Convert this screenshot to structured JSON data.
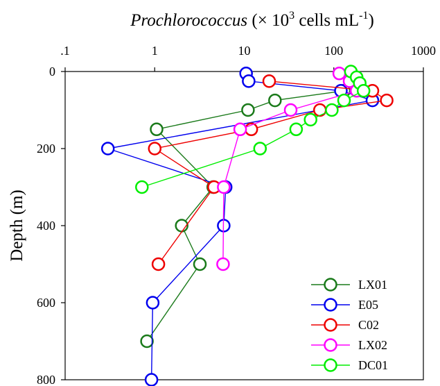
{
  "chart_data": {
    "type": "scatter",
    "title": {
      "italic": "Prochlorococcus",
      "main": " (× 10",
      "sup1": "3",
      "mid": " cells mL",
      "sup2": "-1",
      "end": ")"
    },
    "xlabel": "Prochlorococcus (× 10^3 cells mL^-1)",
    "ylabel": "Depth (m)",
    "x_scale": "log",
    "x_axis_position": "top",
    "xlim": [
      0.1,
      1000
    ],
    "ylim": [
      0,
      800
    ],
    "y_inverted": true,
    "x_tick_values": [
      0.1,
      1,
      10,
      100,
      1000
    ],
    "x_tick_labels": [
      ".1",
      "1",
      "10",
      "100",
      "1000"
    ],
    "y_tick_values": [
      0,
      200,
      400,
      600,
      800
    ],
    "y_tick_labels": [
      "0",
      "200",
      "400",
      "600",
      "800"
    ],
    "grid": false,
    "legend_position": "bottom-right",
    "series": [
      {
        "name": "LX01",
        "color": "#1a7a1a",
        "points": [
          [
            130,
            50
          ],
          [
            22,
            75
          ],
          [
            11,
            100
          ],
          [
            1.05,
            150
          ],
          [
            4.5,
            300
          ],
          [
            2,
            400
          ],
          [
            3.2,
            500
          ],
          [
            0.82,
            700
          ]
        ]
      },
      {
        "name": "E05",
        "color": "#0000ee",
        "points": [
          [
            10.5,
            5
          ],
          [
            11.2,
            25
          ],
          [
            120,
            50
          ],
          [
            270,
            75
          ],
          [
            0.3,
            200
          ],
          [
            6.2,
            300
          ],
          [
            5.9,
            400
          ],
          [
            0.95,
            600
          ],
          [
            0.92,
            800
          ]
        ]
      },
      {
        "name": "C02",
        "color": "#ee0000",
        "points": [
          [
            19,
            25
          ],
          [
            270,
            50
          ],
          [
            390,
            75
          ],
          [
            70,
            100
          ],
          [
            12,
            150
          ],
          [
            1,
            200
          ],
          [
            4.6,
            300
          ],
          [
            1.1,
            500
          ]
        ]
      },
      {
        "name": "LX02",
        "color": "#ff00ff",
        "points": [
          [
            115,
            5
          ],
          [
            150,
            25
          ],
          [
            180,
            50
          ],
          [
            33,
            100
          ],
          [
            9,
            150
          ],
          [
            5.9,
            300
          ],
          [
            5.8,
            500
          ]
        ]
      },
      {
        "name": "DC01",
        "color": "#00ee00",
        "points": [
          [
            155,
            0
          ],
          [
            180,
            15
          ],
          [
            195,
            30
          ],
          [
            215,
            50
          ],
          [
            130,
            75
          ],
          [
            95,
            100
          ],
          [
            55,
            125
          ],
          [
            38,
            150
          ],
          [
            15,
            200
          ],
          [
            0.72,
            300
          ]
        ]
      }
    ]
  }
}
